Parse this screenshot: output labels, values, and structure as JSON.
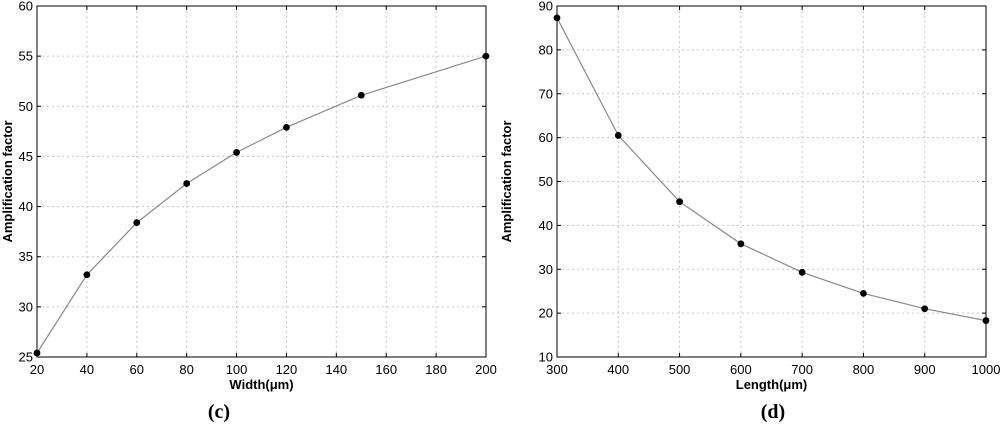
{
  "chart_data": [
    {
      "type": "line",
      "panel_label": "(c)",
      "xlabel": "Width(μm)",
      "ylabel": "Amplification factor",
      "xlim": [
        20,
        200
      ],
      "ylim": [
        25,
        60
      ],
      "xticks": [
        20,
        40,
        60,
        80,
        100,
        120,
        140,
        160,
        180,
        200
      ],
      "yticks": [
        25,
        30,
        35,
        40,
        45,
        50,
        55,
        60
      ],
      "grid": true,
      "series": [
        {
          "x": [
            20,
            40,
            60,
            80,
            100,
            120,
            150,
            200
          ],
          "y": [
            25.4,
            33.2,
            38.4,
            42.3,
            45.4,
            47.9,
            51.1,
            55.0
          ]
        }
      ]
    },
    {
      "type": "line",
      "panel_label": "(d)",
      "xlabel": "Length(μm)",
      "ylabel": "Amplification factor",
      "xlim": [
        300,
        1000
      ],
      "ylim": [
        10,
        90
      ],
      "xticks": [
        300,
        400,
        500,
        600,
        700,
        800,
        900,
        1000
      ],
      "yticks": [
        10,
        20,
        30,
        40,
        50,
        60,
        70,
        80,
        90
      ],
      "grid": true,
      "series": [
        {
          "x": [
            300,
            400,
            500,
            600,
            700,
            800,
            900,
            1000
          ],
          "y": [
            87.3,
            60.5,
            45.4,
            35.8,
            29.3,
            24.5,
            21.0,
            18.3
          ]
        }
      ]
    }
  ]
}
